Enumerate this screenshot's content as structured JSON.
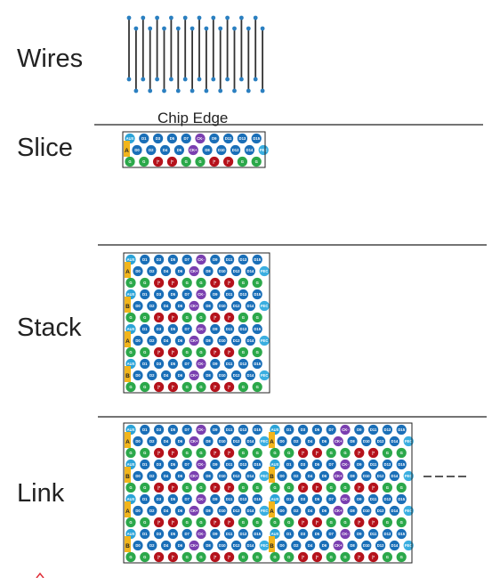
{
  "labels": {
    "wires": "Wires",
    "chip_edge": "Chip Edge",
    "slice": "Slice",
    "stack": "Stack",
    "link": "Link"
  },
  "bumps": {
    "row_top": [
      "AUX",
      "D1",
      "D3",
      "D5",
      "D7",
      "CK-",
      "D9",
      "D11",
      "D13",
      "D15"
    ],
    "row_mid": [
      "D0",
      "D2",
      "D4",
      "D6",
      "CK+",
      "D8",
      "D10",
      "D12",
      "D14",
      "FEC"
    ],
    "row_bot": [
      "G",
      "G",
      "P",
      "P",
      "G",
      "G",
      "P",
      "P",
      "G",
      "G"
    ]
  },
  "tags": {
    "a": "A",
    "b": "B"
  },
  "colors": {
    "signal": "#1a6fb8",
    "clock": "#7a3fb0",
    "aux": "#2aa3d8",
    "fec": "#3aaee0",
    "ground": "#2ba84a",
    "power": "#b5121b",
    "tag": "#f2b51c",
    "wire": "#333333",
    "wire_end": "#2a7fc0",
    "divider": "#222222",
    "accent": "#e0303a"
  }
}
